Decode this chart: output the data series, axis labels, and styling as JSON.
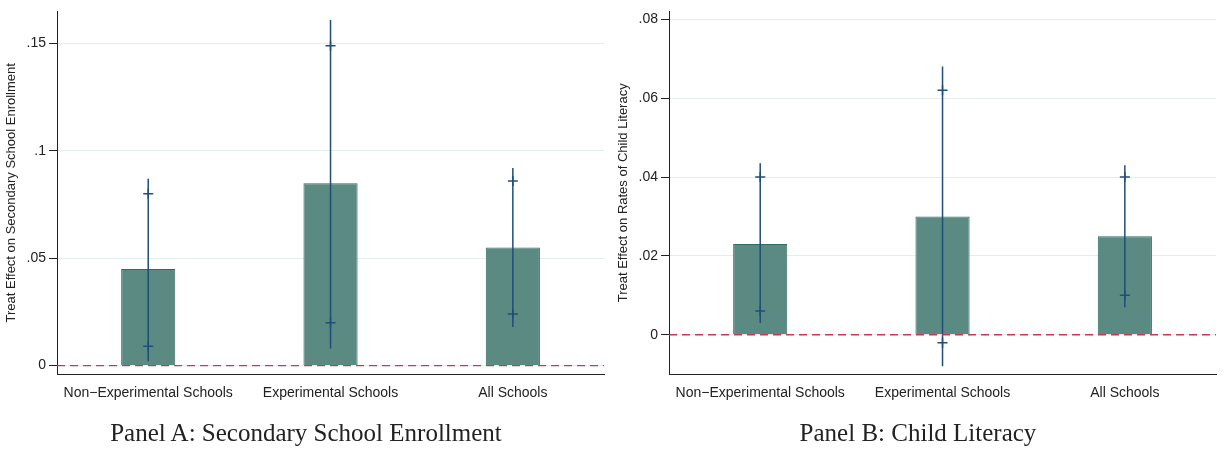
{
  "chart_data": [
    {
      "type": "bar",
      "title": "Panel A: Secondary School Enrollment",
      "ylabel": "Treat Effect on Secondary School Enrollment",
      "categories": [
        "Non−Experimental Schools",
        "Experimental Schools",
        "All Schools"
      ],
      "series": [
        {
          "color": "#5a8a82",
          "values": [
            0.045,
            0.085,
            0.055
          ],
          "errors": [
            [
              0.002,
              0.087
            ],
            [
              0.008,
              0.161
            ],
            [
              0.018,
              0.092
            ]
          ]
        },
        {
          "type": "scatter",
          "color": "#1f4e79",
          "marker": "cross",
          "x": [
            "Non−Experimental Schools",
            "Experimental Schools",
            "All Schools",
            "Non−Experimental Schools",
            "Experimental Schools",
            "All Schools"
          ],
          "values": [
            0.08,
            0.149,
            0.086,
            0.009,
            0.02,
            0.024
          ]
        }
      ],
      "ylim": [
        -0.004,
        0.165
      ],
      "yticks": [
        {
          "value": 0,
          "label": "0"
        },
        {
          "value": 0.05,
          "label": ".05"
        },
        {
          "value": 0.1,
          "label": ".1"
        },
        {
          "value": 0.15,
          "label": ".15"
        }
      ],
      "ref_lines": [
        {
          "axis": "y",
          "value": 0,
          "color": "#c8385a",
          "line_style": "dashed"
        }
      ],
      "grid": "y",
      "legend": false
    },
    {
      "type": "bar",
      "title": "Panel B: Child Literacy",
      "ylabel": "Treat Effect on Rates of Child Literacy",
      "categories": [
        "Non−Experimental Schools",
        "Experimental Schools",
        "All Schools"
      ],
      "series": [
        {
          "color": "#5a8a82",
          "values": [
            0.023,
            0.03,
            0.025
          ],
          "errors": [
            [
              0.003,
              0.0435
            ],
            [
              -0.008,
              0.068
            ],
            [
              0.007,
              0.043
            ]
          ]
        },
        {
          "type": "scatter",
          "color": "#1f4e79",
          "marker": "cross",
          "x": [
            "Non−Experimental Schools",
            "Experimental Schools",
            "All Schools",
            "Non−Experimental Schools",
            "Experimental Schools",
            "All Schools"
          ],
          "values": [
            0.04,
            0.062,
            0.04,
            0.006,
            -0.002,
            0.01
          ]
        }
      ],
      "ylim": [
        -0.01,
        0.082
      ],
      "yticks": [
        {
          "value": 0,
          "label": "0"
        },
        {
          "value": 0.02,
          "label": ".02"
        },
        {
          "value": 0.04,
          "label": ".04"
        },
        {
          "value": 0.06,
          "label": ".06"
        },
        {
          "value": 0.08,
          "label": ".08"
        }
      ],
      "ref_lines": [
        {
          "axis": "y",
          "value": 0,
          "color": "#c8385a",
          "line_style": "dashed"
        }
      ],
      "grid": "y",
      "legend": false
    }
  ]
}
